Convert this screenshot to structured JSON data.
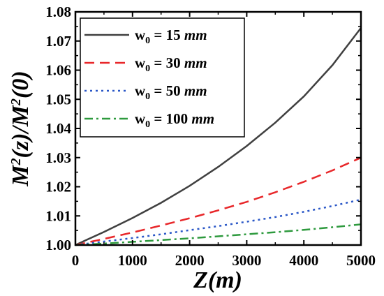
{
  "chart_data": {
    "type": "line",
    "xlabel": "Z(m)",
    "ylabel": {
      "base": "M",
      "sup1": "2",
      "mid": "(z)/M",
      "sup2": "2",
      "end": "(0)"
    },
    "xlim": [
      0,
      5000
    ],
    "ylim": [
      1.0,
      1.08
    ],
    "x_ticks": [
      0,
      1000,
      2000,
      3000,
      4000,
      5000
    ],
    "y_ticks": [
      1.0,
      1.01,
      1.02,
      1.03,
      1.04,
      1.05,
      1.06,
      1.07,
      1.08
    ],
    "grid": false,
    "legend_position": "top-left",
    "series": [
      {
        "name": "w0 = 15 mm",
        "label": {
          "main": "w",
          "sub": "0",
          "value": " = 15 ",
          "unit": "mm"
        },
        "color": "#404040",
        "dash": "solid",
        "x": [
          0,
          500,
          1000,
          1500,
          2000,
          2500,
          3000,
          3500,
          4000,
          4500,
          5000
        ],
        "y": [
          1.0,
          1.0045,
          1.0093,
          1.0145,
          1.0203,
          1.0268,
          1.034,
          1.042,
          1.051,
          1.0617,
          1.0745
        ]
      },
      {
        "name": "w0 = 30 mm",
        "label": {
          "main": "w",
          "sub": "0",
          "value": " = 30 ",
          "unit": "mm"
        },
        "color": "#e8272a",
        "dash": "dashed",
        "x": [
          0,
          500,
          1000,
          1500,
          2000,
          2500,
          3000,
          3500,
          4000,
          4500,
          5000
        ],
        "y": [
          1.0,
          1.0021,
          1.0043,
          1.0067,
          1.0092,
          1.0119,
          1.0148,
          1.0181,
          1.0217,
          1.0256,
          1.03
        ]
      },
      {
        "name": "w0 = 50 mm",
        "label": {
          "main": "w",
          "sub": "0",
          "value": " = 50 ",
          "unit": "mm"
        },
        "color": "#2a57c7",
        "dash": "dotted",
        "x": [
          0,
          500,
          1000,
          1500,
          2000,
          2500,
          3000,
          3500,
          4000,
          4500,
          5000
        ],
        "y": [
          1.0,
          1.0012,
          1.0024,
          1.0037,
          1.0051,
          1.0065,
          1.008,
          1.0096,
          1.0114,
          1.0134,
          1.0156
        ]
      },
      {
        "name": "w0 = 100 mm",
        "label": {
          "main": "w",
          "sub": "0",
          "value": " = 100 ",
          "unit": "mm"
        },
        "color": "#2e9a3e",
        "dash": "dashdot",
        "x": [
          0,
          500,
          1000,
          1500,
          2000,
          2500,
          3000,
          3500,
          4000,
          4500,
          5000
        ],
        "y": [
          1.0,
          1.0005,
          1.0011,
          1.0017,
          1.0023,
          1.003,
          1.0037,
          1.0044,
          1.0052,
          1.0061,
          1.0071
        ]
      }
    ]
  }
}
